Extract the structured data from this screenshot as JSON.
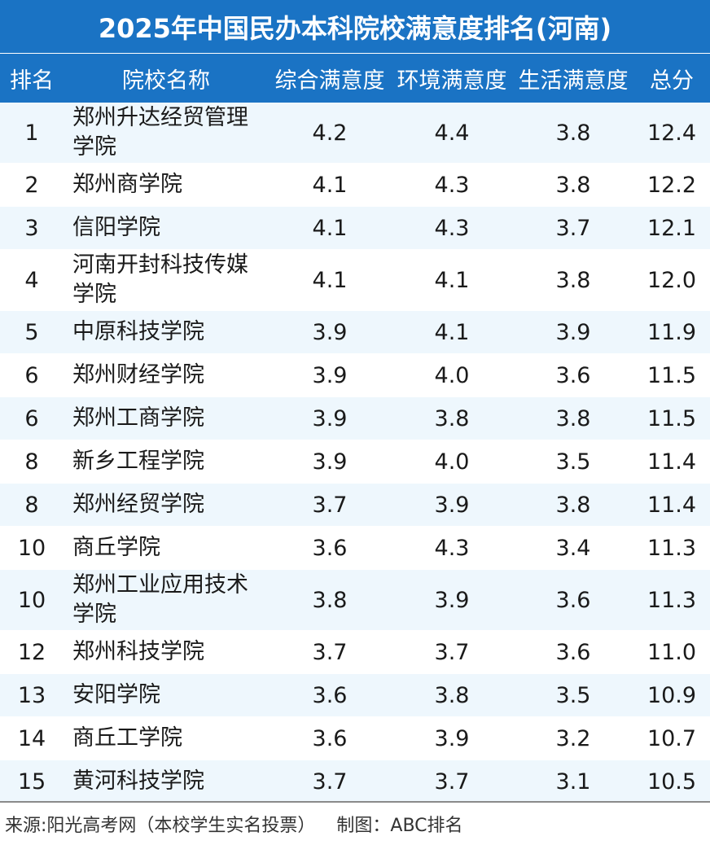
{
  "title": "2025年中国民办本科院校满意度排名(河南)",
  "columns": {
    "rank": "排名",
    "name": "院校名称",
    "overall": "综合满意度",
    "environment": "环境满意度",
    "life": "生活满意度",
    "total": "总分"
  },
  "rows": [
    {
      "rank": "1",
      "name": "郑州升达经贸管理学院",
      "overall": "4.2",
      "environment": "4.4",
      "life": "3.8",
      "total": "12.4"
    },
    {
      "rank": "2",
      "name": "郑州商学院",
      "overall": "4.1",
      "environment": "4.3",
      "life": "3.8",
      "total": "12.2"
    },
    {
      "rank": "3",
      "name": "信阳学院",
      "overall": "4.1",
      "environment": "4.3",
      "life": "3.7",
      "total": "12.1"
    },
    {
      "rank": "4",
      "name": "河南开封科技传媒学院",
      "overall": "4.1",
      "environment": "4.1",
      "life": "3.8",
      "total": "12.0"
    },
    {
      "rank": "5",
      "name": "中原科技学院",
      "overall": "3.9",
      "environment": "4.1",
      "life": "3.9",
      "total": "11.9"
    },
    {
      "rank": "6",
      "name": "郑州财经学院",
      "overall": "3.9",
      "environment": "4.0",
      "life": "3.6",
      "total": "11.5"
    },
    {
      "rank": "6",
      "name": "郑州工商学院",
      "overall": "3.9",
      "environment": "3.8",
      "life": "3.8",
      "total": "11.5"
    },
    {
      "rank": "8",
      "name": "新乡工程学院",
      "overall": "3.9",
      "environment": "4.0",
      "life": "3.5",
      "total": "11.4"
    },
    {
      "rank": "8",
      "name": "郑州经贸学院",
      "overall": "3.7",
      "environment": "3.9",
      "life": "3.8",
      "total": "11.4"
    },
    {
      "rank": "10",
      "name": "商丘学院",
      "overall": "3.6",
      "environment": "4.3",
      "life": "3.4",
      "total": "11.3"
    },
    {
      "rank": "10",
      "name": "郑州工业应用技术学院",
      "overall": "3.8",
      "environment": "3.9",
      "life": "3.6",
      "total": "11.3"
    },
    {
      "rank": "12",
      "name": "郑州科技学院",
      "overall": "3.7",
      "environment": "3.7",
      "life": "3.6",
      "total": "11.0"
    },
    {
      "rank": "13",
      "name": "安阳学院",
      "overall": "3.6",
      "environment": "3.8",
      "life": "3.5",
      "total": "10.9"
    },
    {
      "rank": "14",
      "name": "商丘工学院",
      "overall": "3.6",
      "environment": "3.9",
      "life": "3.2",
      "total": "10.7"
    },
    {
      "rank": "15",
      "name": "黄河科技学院",
      "overall": "3.7",
      "environment": "3.7",
      "life": "3.1",
      "total": "10.5"
    }
  ],
  "footer": {
    "source": "来源:阳光高考网（本校学生实名投票）",
    "credit": "制图：ABC排名"
  },
  "colors": {
    "header_bg": "#1a73c4",
    "header_text": "#ffffff",
    "stripe": "#eef7fd",
    "text": "#1a1a1a"
  }
}
